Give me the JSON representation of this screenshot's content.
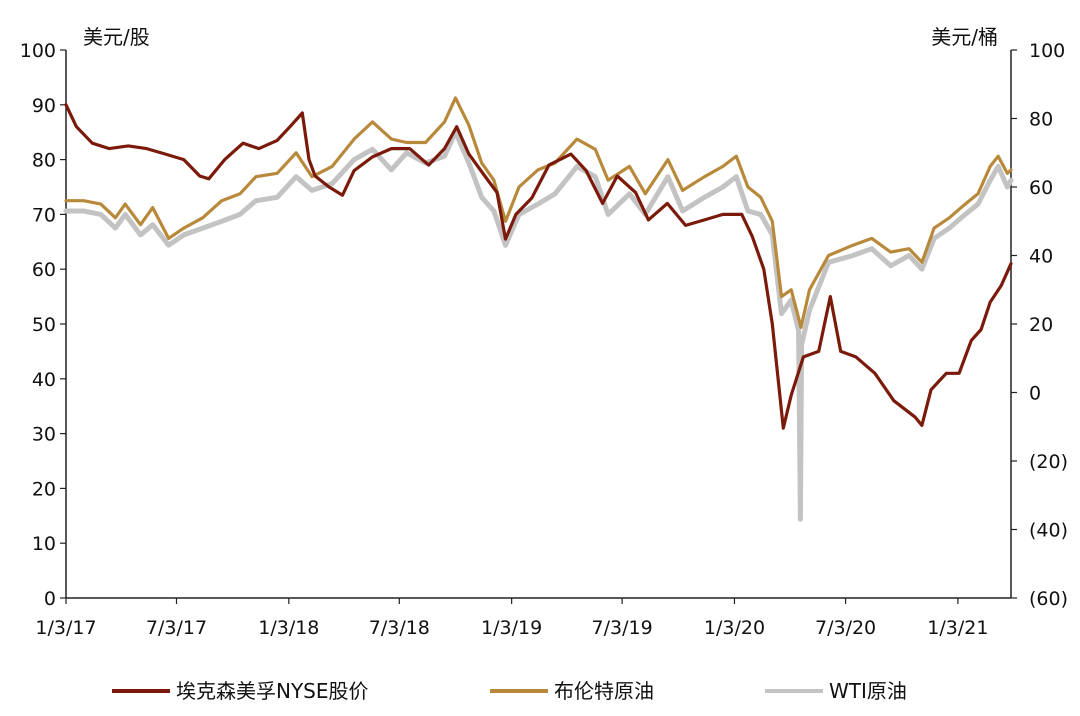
{
  "chart_data": {
    "type": "line",
    "left_axis": {
      "unit": "美元/股",
      "min": 0,
      "max": 100,
      "step": 10,
      "tick_labels": [
        "0",
        "10",
        "20",
        "30",
        "40",
        "50",
        "60",
        "70",
        "80",
        "90",
        "100"
      ]
    },
    "right_axis": {
      "unit": "美元/桶",
      "min": -60,
      "max": 100,
      "step": 20,
      "tick_labels": [
        "(60)",
        "(40)",
        "(20)",
        "0",
        "20",
        "40",
        "60",
        "80",
        "100"
      ],
      "negative_color": "#e00000"
    },
    "x_axis": {
      "tick_labels": [
        "1/3/17",
        "7/3/17",
        "1/3/18",
        "7/3/18",
        "1/3/19",
        "7/3/19",
        "1/3/20",
        "7/3/20",
        "1/3/21"
      ]
    },
    "x_range": [
      "2017-01-03",
      "2021-03-31"
    ],
    "grid": false,
    "legend_position": "bottom",
    "series": [
      {
        "name": "埃克森美孚NYSE股价",
        "axis": "left",
        "color": "#7b1a0a",
        "points": [
          [
            "2017-01-03",
            90
          ],
          [
            "2017-01-20",
            86
          ],
          [
            "2017-02-15",
            83
          ],
          [
            "2017-03-15",
            82
          ],
          [
            "2017-04-15",
            82.5
          ],
          [
            "2017-05-15",
            82
          ],
          [
            "2017-06-15",
            81
          ],
          [
            "2017-07-15",
            80
          ],
          [
            "2017-08-10",
            77
          ],
          [
            "2017-08-25",
            76.5
          ],
          [
            "2017-09-20",
            80
          ],
          [
            "2017-10-20",
            83
          ],
          [
            "2017-11-15",
            82
          ],
          [
            "2017-12-15",
            83.5
          ],
          [
            "2018-01-05",
            86
          ],
          [
            "2018-01-25",
            88.5
          ],
          [
            "2018-02-05",
            80
          ],
          [
            "2018-02-15",
            77
          ],
          [
            "2018-03-10",
            75
          ],
          [
            "2018-04-01",
            73.5
          ],
          [
            "2018-04-20",
            78
          ],
          [
            "2018-05-20",
            80.5
          ],
          [
            "2018-06-20",
            82
          ],
          [
            "2018-07-20",
            82
          ],
          [
            "2018-08-20",
            79
          ],
          [
            "2018-09-15",
            82
          ],
          [
            "2018-10-05",
            86
          ],
          [
            "2018-10-25",
            81
          ],
          [
            "2018-11-20",
            77
          ],
          [
            "2018-12-10",
            74
          ],
          [
            "2018-12-24",
            65.5
          ],
          [
            "2019-01-10",
            70
          ],
          [
            "2019-02-05",
            73
          ],
          [
            "2019-03-05",
            79
          ],
          [
            "2019-04-10",
            81
          ],
          [
            "2019-05-05",
            78
          ],
          [
            "2019-06-01",
            72
          ],
          [
            "2019-06-25",
            77
          ],
          [
            "2019-07-25",
            74
          ],
          [
            "2019-08-15",
            69
          ],
          [
            "2019-09-15",
            72
          ],
          [
            "2019-10-15",
            68
          ],
          [
            "2019-11-15",
            69
          ],
          [
            "2019-12-15",
            70
          ],
          [
            "2020-01-15",
            70
          ],
          [
            "2020-02-01",
            66
          ],
          [
            "2020-02-20",
            60
          ],
          [
            "2020-03-05",
            50
          ],
          [
            "2020-03-23",
            31
          ],
          [
            "2020-04-05",
            37
          ],
          [
            "2020-04-25",
            44
          ],
          [
            "2020-05-20",
            45
          ],
          [
            "2020-06-08",
            55
          ],
          [
            "2020-06-25",
            45
          ],
          [
            "2020-07-20",
            44
          ],
          [
            "2020-08-20",
            41
          ],
          [
            "2020-09-20",
            36
          ],
          [
            "2020-10-25",
            33
          ],
          [
            "2020-11-05",
            31.5
          ],
          [
            "2020-11-20",
            38
          ],
          [
            "2020-12-15",
            41
          ],
          [
            "2021-01-05",
            41
          ],
          [
            "2021-01-25",
            47
          ],
          [
            "2021-02-10",
            49
          ],
          [
            "2021-02-25",
            54
          ],
          [
            "2021-03-15",
            57
          ],
          [
            "2021-03-31",
            61
          ]
        ]
      },
      {
        "name": "布伦特原油",
        "axis": "right",
        "color": "#b8893a",
        "points": [
          [
            "2017-01-03",
            56
          ],
          [
            "2017-02-01",
            56
          ],
          [
            "2017-03-01",
            55
          ],
          [
            "2017-03-25",
            51
          ],
          [
            "2017-04-10",
            55
          ],
          [
            "2017-05-05",
            49
          ],
          [
            "2017-05-25",
            54
          ],
          [
            "2017-06-20",
            45
          ],
          [
            "2017-07-15",
            48
          ],
          [
            "2017-08-15",
            51
          ],
          [
            "2017-09-15",
            56
          ],
          [
            "2017-10-15",
            58
          ],
          [
            "2017-11-10",
            63
          ],
          [
            "2017-12-15",
            64
          ],
          [
            "2018-01-15",
            70
          ],
          [
            "2018-02-10",
            63
          ],
          [
            "2018-03-15",
            66
          ],
          [
            "2018-04-20",
            74
          ],
          [
            "2018-05-20",
            79
          ],
          [
            "2018-06-20",
            74
          ],
          [
            "2018-07-15",
            73
          ],
          [
            "2018-08-15",
            73
          ],
          [
            "2018-09-15",
            79
          ],
          [
            "2018-10-03",
            86
          ],
          [
            "2018-10-25",
            78
          ],
          [
            "2018-11-15",
            67
          ],
          [
            "2018-12-05",
            62
          ],
          [
            "2018-12-24",
            50
          ],
          [
            "2019-01-15",
            60
          ],
          [
            "2019-02-15",
            65
          ],
          [
            "2019-03-15",
            67
          ],
          [
            "2019-04-20",
            74
          ],
          [
            "2019-05-20",
            71
          ],
          [
            "2019-06-10",
            62
          ],
          [
            "2019-07-15",
            66
          ],
          [
            "2019-08-10",
            58
          ],
          [
            "2019-09-16",
            68
          ],
          [
            "2019-10-10",
            59
          ],
          [
            "2019-11-15",
            63
          ],
          [
            "2019-12-15",
            66
          ],
          [
            "2020-01-06",
            69
          ],
          [
            "2020-01-25",
            60
          ],
          [
            "2020-02-15",
            57
          ],
          [
            "2020-03-05",
            50
          ],
          [
            "2020-03-20",
            28
          ],
          [
            "2020-04-05",
            30
          ],
          [
            "2020-04-21",
            19
          ],
          [
            "2020-05-05",
            30
          ],
          [
            "2020-06-05",
            40
          ],
          [
            "2020-07-15",
            43
          ],
          [
            "2020-08-15",
            45
          ],
          [
            "2020-09-15",
            41
          ],
          [
            "2020-10-15",
            42
          ],
          [
            "2020-11-05",
            38
          ],
          [
            "2020-11-25",
            48
          ],
          [
            "2020-12-20",
            51
          ],
          [
            "2021-01-15",
            55
          ],
          [
            "2021-02-05",
            58
          ],
          [
            "2021-02-25",
            66
          ],
          [
            "2021-03-10",
            69
          ],
          [
            "2021-03-25",
            64
          ],
          [
            "2021-03-31",
            65
          ]
        ]
      },
      {
        "name": "WTI原油",
        "axis": "right",
        "color": "#c3c3c3",
        "points": [
          [
            "2017-01-03",
            53
          ],
          [
            "2017-02-01",
            53
          ],
          [
            "2017-03-01",
            52
          ],
          [
            "2017-03-25",
            48
          ],
          [
            "2017-04-10",
            52
          ],
          [
            "2017-05-05",
            46
          ],
          [
            "2017-05-25",
            49
          ],
          [
            "2017-06-20",
            43
          ],
          [
            "2017-07-15",
            46
          ],
          [
            "2017-08-15",
            48
          ],
          [
            "2017-09-15",
            50
          ],
          [
            "2017-10-15",
            52
          ],
          [
            "2017-11-10",
            56
          ],
          [
            "2017-12-15",
            57
          ],
          [
            "2018-01-15",
            63
          ],
          [
            "2018-02-10",
            59
          ],
          [
            "2018-03-15",
            61
          ],
          [
            "2018-04-20",
            68
          ],
          [
            "2018-05-20",
            71
          ],
          [
            "2018-06-20",
            65
          ],
          [
            "2018-07-15",
            70
          ],
          [
            "2018-08-15",
            67
          ],
          [
            "2018-09-15",
            69
          ],
          [
            "2018-10-03",
            76
          ],
          [
            "2018-10-25",
            67
          ],
          [
            "2018-11-15",
            57
          ],
          [
            "2018-12-05",
            53
          ],
          [
            "2018-12-24",
            43
          ],
          [
            "2019-01-15",
            52
          ],
          [
            "2019-02-15",
            55
          ],
          [
            "2019-03-15",
            58
          ],
          [
            "2019-04-20",
            66
          ],
          [
            "2019-05-20",
            63
          ],
          [
            "2019-06-10",
            52
          ],
          [
            "2019-07-15",
            58
          ],
          [
            "2019-08-10",
            52
          ],
          [
            "2019-09-16",
            63
          ],
          [
            "2019-10-10",
            53
          ],
          [
            "2019-11-15",
            57
          ],
          [
            "2019-12-15",
            60
          ],
          [
            "2020-01-06",
            63
          ],
          [
            "2020-01-25",
            53
          ],
          [
            "2020-02-15",
            52
          ],
          [
            "2020-03-05",
            46
          ],
          [
            "2020-03-20",
            23
          ],
          [
            "2020-04-05",
            27
          ],
          [
            "2020-04-17",
            18
          ],
          [
            "2020-04-20",
            -37
          ],
          [
            "2020-04-22",
            14
          ],
          [
            "2020-05-05",
            24
          ],
          [
            "2020-06-05",
            38
          ],
          [
            "2020-07-15",
            40
          ],
          [
            "2020-08-15",
            42
          ],
          [
            "2020-09-15",
            37
          ],
          [
            "2020-10-15",
            40
          ],
          [
            "2020-11-05",
            36
          ],
          [
            "2020-11-25",
            45
          ],
          [
            "2020-12-20",
            48
          ],
          [
            "2021-01-15",
            52
          ],
          [
            "2021-02-05",
            55
          ],
          [
            "2021-02-25",
            62
          ],
          [
            "2021-03-10",
            66
          ],
          [
            "2021-03-25",
            60
          ],
          [
            "2021-03-31",
            62
          ]
        ]
      }
    ]
  }
}
